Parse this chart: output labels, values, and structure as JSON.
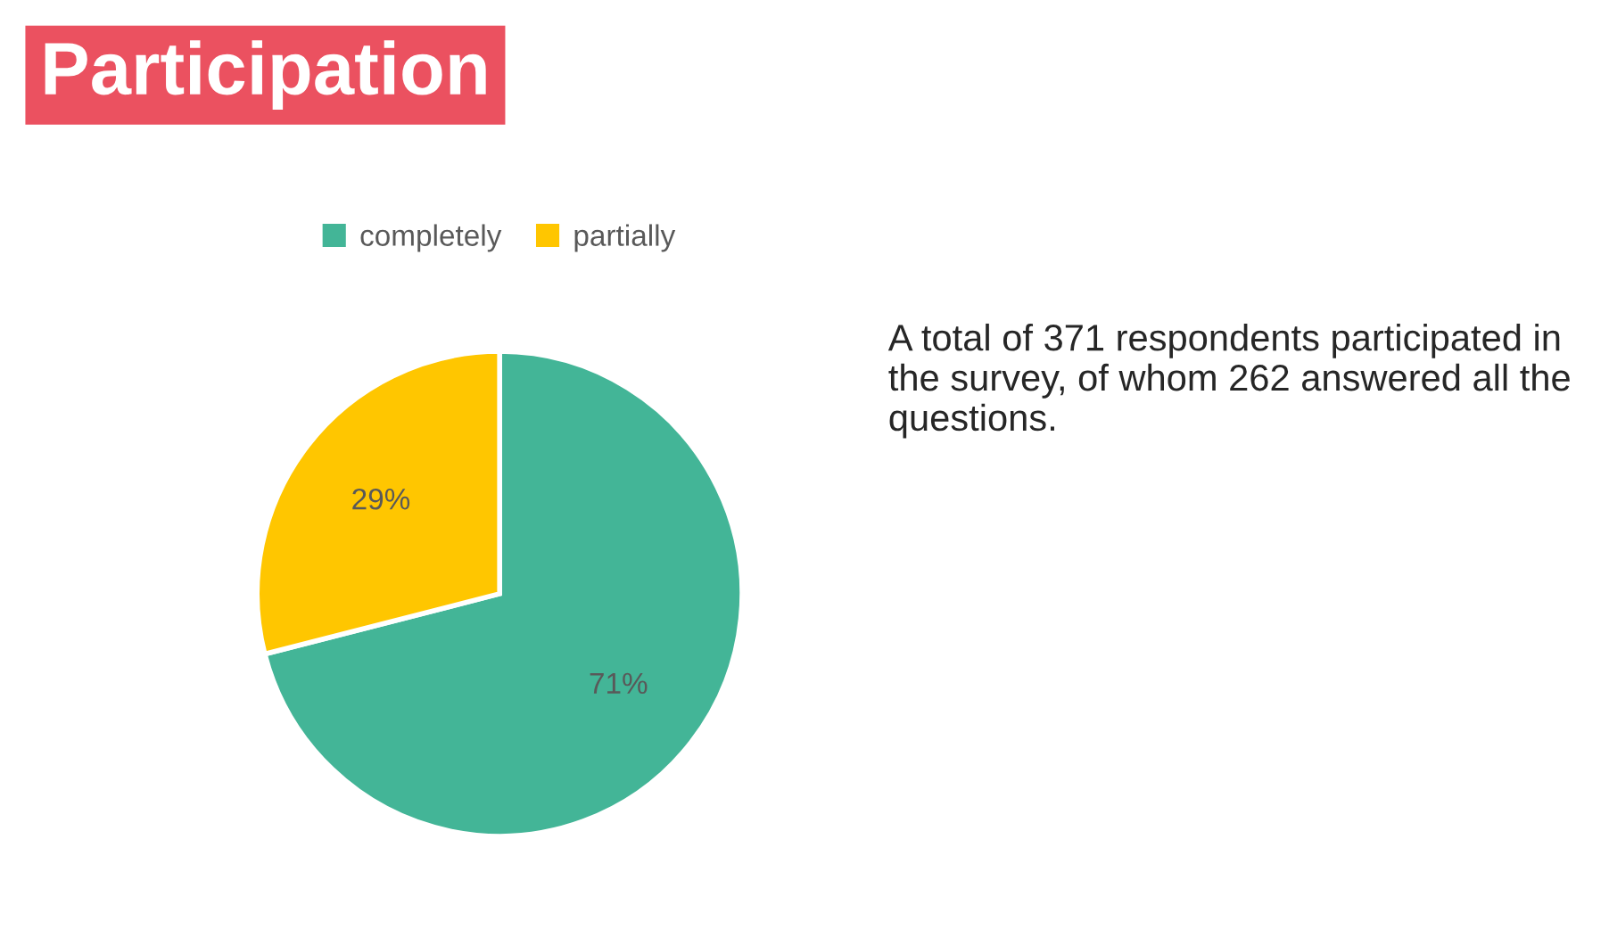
{
  "chart_data": {
    "type": "pie",
    "title": "Participation",
    "categories": [
      "completely",
      "partially"
    ],
    "values": [
      71,
      29
    ],
    "colors": [
      "#43b597",
      "#ffc600"
    ],
    "value_labels": [
      "71%",
      "29%"
    ],
    "legend": "top",
    "annotations": [
      "A total of 371 respondents participated in the survey, of whom 262 answered all the questions."
    ]
  }
}
